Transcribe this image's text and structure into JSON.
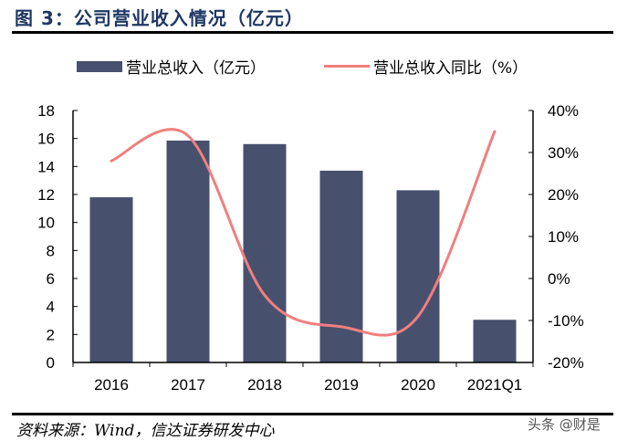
{
  "title": "图 3：公司营业收入情况（亿元）",
  "source": "资料来源：Wind，信达证券研发中心",
  "watermark": "头条 @财是",
  "colors": {
    "bar": "#47506d",
    "line": "#f07f7f",
    "title": "#1f3864"
  },
  "chart_data": {
    "type": "bar+line",
    "categories": [
      "2016",
      "2017",
      "2018",
      "2019",
      "2020",
      "2021Q1"
    ],
    "series": [
      {
        "name": "营业总收入（亿元）",
        "type": "bar",
        "axis": "left",
        "values": [
          11.8,
          15.85,
          15.6,
          13.7,
          12.3,
          3.05
        ]
      },
      {
        "name": "营业总收入同比（%）",
        "type": "line",
        "axis": "right",
        "smooth": true,
        "values": [
          28,
          34,
          -4,
          -11.5,
          -9,
          35
        ]
      }
    ],
    "left_axis": {
      "ylim": [
        0,
        18
      ],
      "ticks": [
        "0",
        "2",
        "4",
        "6",
        "8",
        "10",
        "12",
        "14",
        "16",
        "18"
      ]
    },
    "right_axis": {
      "ylim": [
        -20,
        40
      ],
      "ticks": [
        "-20%",
        "-10%",
        "0%",
        "10%",
        "20%",
        "30%",
        "40%"
      ]
    },
    "legend_position": "top",
    "grid": false
  }
}
